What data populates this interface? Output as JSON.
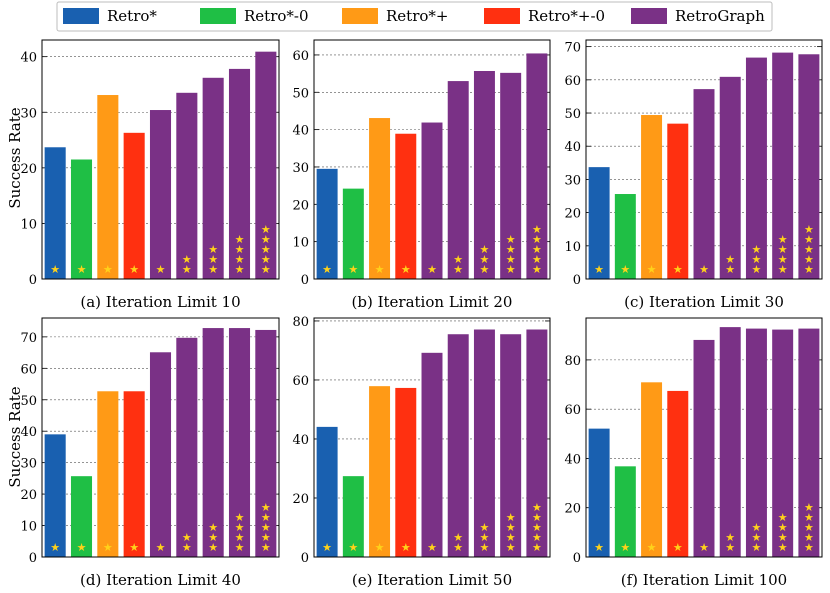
{
  "legend": [
    {
      "name": "Retro*",
      "color": "#1960b0"
    },
    {
      "name": "Retro*-0",
      "color": "#1fbf45"
    },
    {
      "name": "Retro*+",
      "color": "#ff9a16"
    },
    {
      "name": "Retro*+-0",
      "color": "#ff3010"
    },
    {
      "name": "RetroGraph",
      "color": "#7a3186"
    }
  ],
  "star_color": "#ffd21a",
  "ylabel": "Success Rate",
  "chart_data": [
    {
      "type": "bar",
      "title": "(a) Iteration Limit 10",
      "ylim": [
        0,
        43
      ],
      "yticks": [
        0,
        10,
        20,
        30,
        40
      ],
      "values": [
        23.7,
        21.5,
        33.1,
        26.3,
        30.4,
        33.5,
        36.2,
        37.8,
        40.9
      ],
      "stars": [
        1,
        1,
        1,
        1,
        1,
        2,
        3,
        4,
        5
      ]
    },
    {
      "type": "bar",
      "title": "(b) Iteration Limit 20",
      "ylim": [
        0,
        64
      ],
      "yticks": [
        0,
        10,
        20,
        30,
        40,
        50,
        60
      ],
      "values": [
        29.5,
        24.2,
        43.1,
        38.9,
        41.9,
        53.0,
        55.7,
        55.2,
        60.4
      ],
      "stars": [
        1,
        1,
        1,
        1,
        1,
        2,
        3,
        4,
        5
      ]
    },
    {
      "type": "bar",
      "title": "(c) Iteration Limit 30",
      "ylim": [
        0,
        72
      ],
      "yticks": [
        0,
        10,
        20,
        30,
        40,
        50,
        60,
        70
      ],
      "values": [
        33.7,
        25.6,
        49.4,
        46.8,
        57.2,
        60.9,
        66.7,
        68.2,
        67.7
      ],
      "stars": [
        1,
        1,
        1,
        1,
        1,
        2,
        3,
        4,
        5
      ]
    },
    {
      "type": "bar",
      "title": "(d) Iteration Limit 40",
      "ylim": [
        0,
        76
      ],
      "yticks": [
        0,
        10,
        20,
        30,
        40,
        50,
        60,
        70
      ],
      "values": [
        39.0,
        25.7,
        52.7,
        52.7,
        65.1,
        69.7,
        72.8,
        72.8,
        72.2
      ],
      "stars": [
        1,
        1,
        1,
        1,
        1,
        2,
        3,
        4,
        5
      ]
    },
    {
      "type": "bar",
      "title": "(e) Iteration Limit 50",
      "ylim": [
        0,
        81
      ],
      "yticks": [
        0,
        20,
        40,
        60,
        80
      ],
      "values": [
        44.1,
        27.4,
        57.9,
        57.3,
        69.2,
        75.5,
        77.1,
        75.5,
        77.1
      ],
      "stars": [
        1,
        1,
        1,
        1,
        1,
        2,
        3,
        4,
        5
      ]
    },
    {
      "type": "bar",
      "title": "(f) Iteration Limit 100",
      "ylim": [
        0,
        97
      ],
      "yticks": [
        0,
        20,
        40,
        60,
        80
      ],
      "values": [
        52.1,
        36.8,
        70.9,
        67.4,
        88.1,
        93.3,
        92.7,
        92.3,
        92.7
      ],
      "stars": [
        1,
        1,
        1,
        1,
        1,
        2,
        3,
        4,
        5
      ]
    }
  ]
}
